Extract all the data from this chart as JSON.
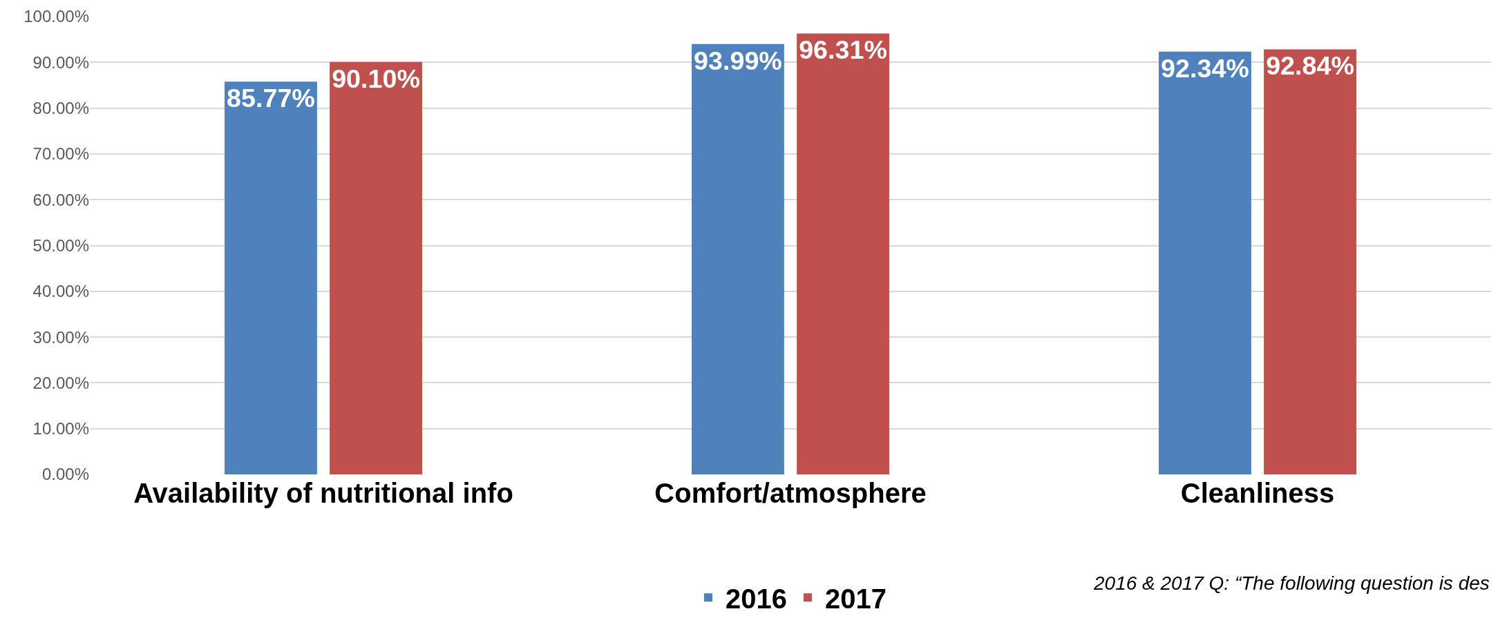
{
  "chart_data": {
    "type": "bar",
    "categories": [
      "Availability of nutritional info",
      "Comfort/atmosphere",
      "Cleanliness"
    ],
    "series": [
      {
        "name": "2016",
        "color": "#4f81bd",
        "values": [
          85.77,
          93.99,
          92.34
        ],
        "value_labels": [
          "85.77%",
          "93.99%",
          "92.34%"
        ]
      },
      {
        "name": "2017",
        "color": "#c0504d",
        "values": [
          90.1,
          96.31,
          92.84
        ],
        "value_labels": [
          "90.10%",
          "96.31%",
          "92.84%"
        ]
      }
    ],
    "ylim": [
      0,
      100
    ],
    "yticks": [
      {
        "value": 0,
        "label": "0.00%"
      },
      {
        "value": 10,
        "label": "10.00%"
      },
      {
        "value": 20,
        "label": "20.00%"
      },
      {
        "value": 30,
        "label": "30.00%"
      },
      {
        "value": 40,
        "label": "40.00%"
      },
      {
        "value": 50,
        "label": "50.00%"
      },
      {
        "value": 60,
        "label": "60.00%"
      },
      {
        "value": 70,
        "label": "70.00%"
      },
      {
        "value": 80,
        "label": "80.00%"
      },
      {
        "value": 90,
        "label": "90.00%"
      },
      {
        "value": 100,
        "label": "100.00%"
      }
    ],
    "grid": "y",
    "legend": "bottom",
    "annotations": [
      "2016 & 2017 Q: “The following question is des"
    ]
  }
}
